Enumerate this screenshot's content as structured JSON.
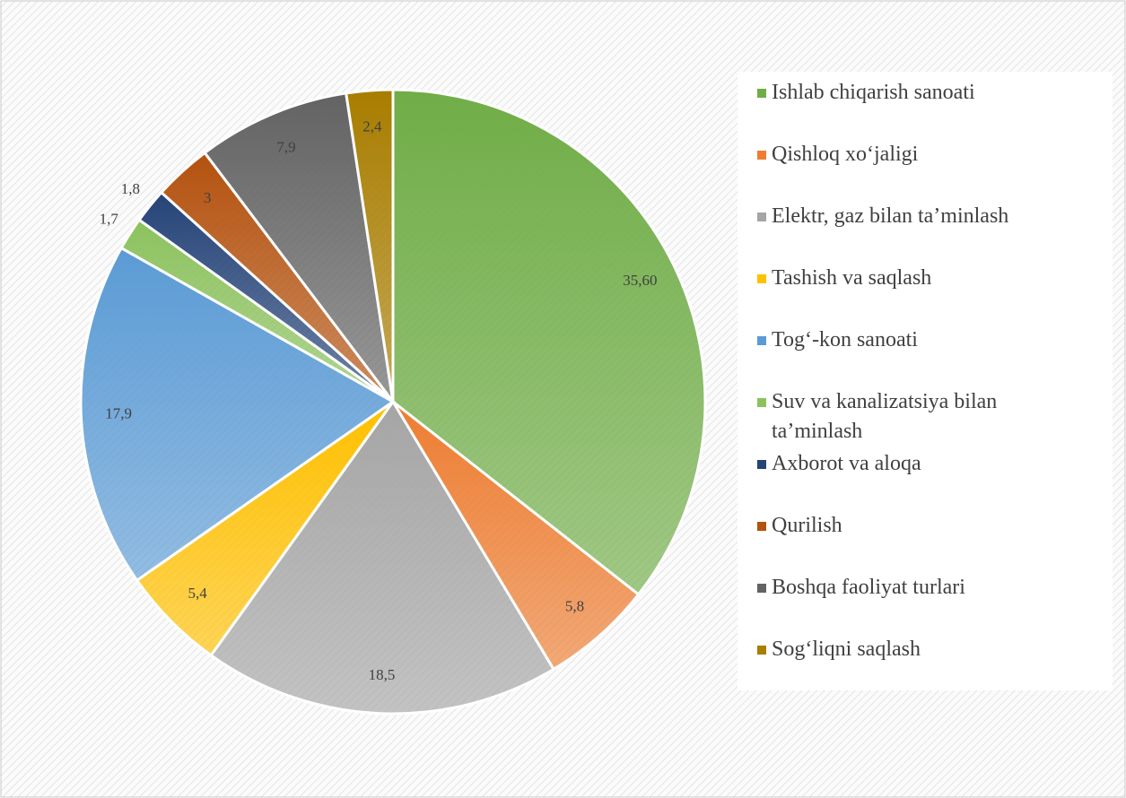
{
  "chart_data": {
    "type": "pie",
    "categories": [
      "Ishlab chiqarish sanoati",
      "Qishloq xo‘jaligi",
      "Elektr, gaz bilan ta’minlash",
      "Tashish va saqlash",
      "Tog‘-kon sanoati",
      "Suv va kanalizatsiya bilan ta’minlash",
      "Axborot va aloqa",
      "Qurilish",
      "Boshqa faoliyat turlari",
      "Sog‘liqni saqlash"
    ],
    "values": [
      35.6,
      5.8,
      18.5,
      5.4,
      17.9,
      1.7,
      1.8,
      3,
      7.9,
      2.4
    ],
    "value_labels": [
      "35,60",
      "5,8",
      "18,5",
      "5,4",
      "17,9",
      "1,7",
      "1,8",
      "3",
      "7,9",
      "2,4"
    ],
    "colors": [
      "#70ad47",
      "#ed7d31",
      "#a5a5a5",
      "#ffc000",
      "#5b9bd5",
      "#8cc25e",
      "#264478",
      "#b4520f",
      "#636363",
      "#a87d00"
    ],
    "legend": "right"
  }
}
